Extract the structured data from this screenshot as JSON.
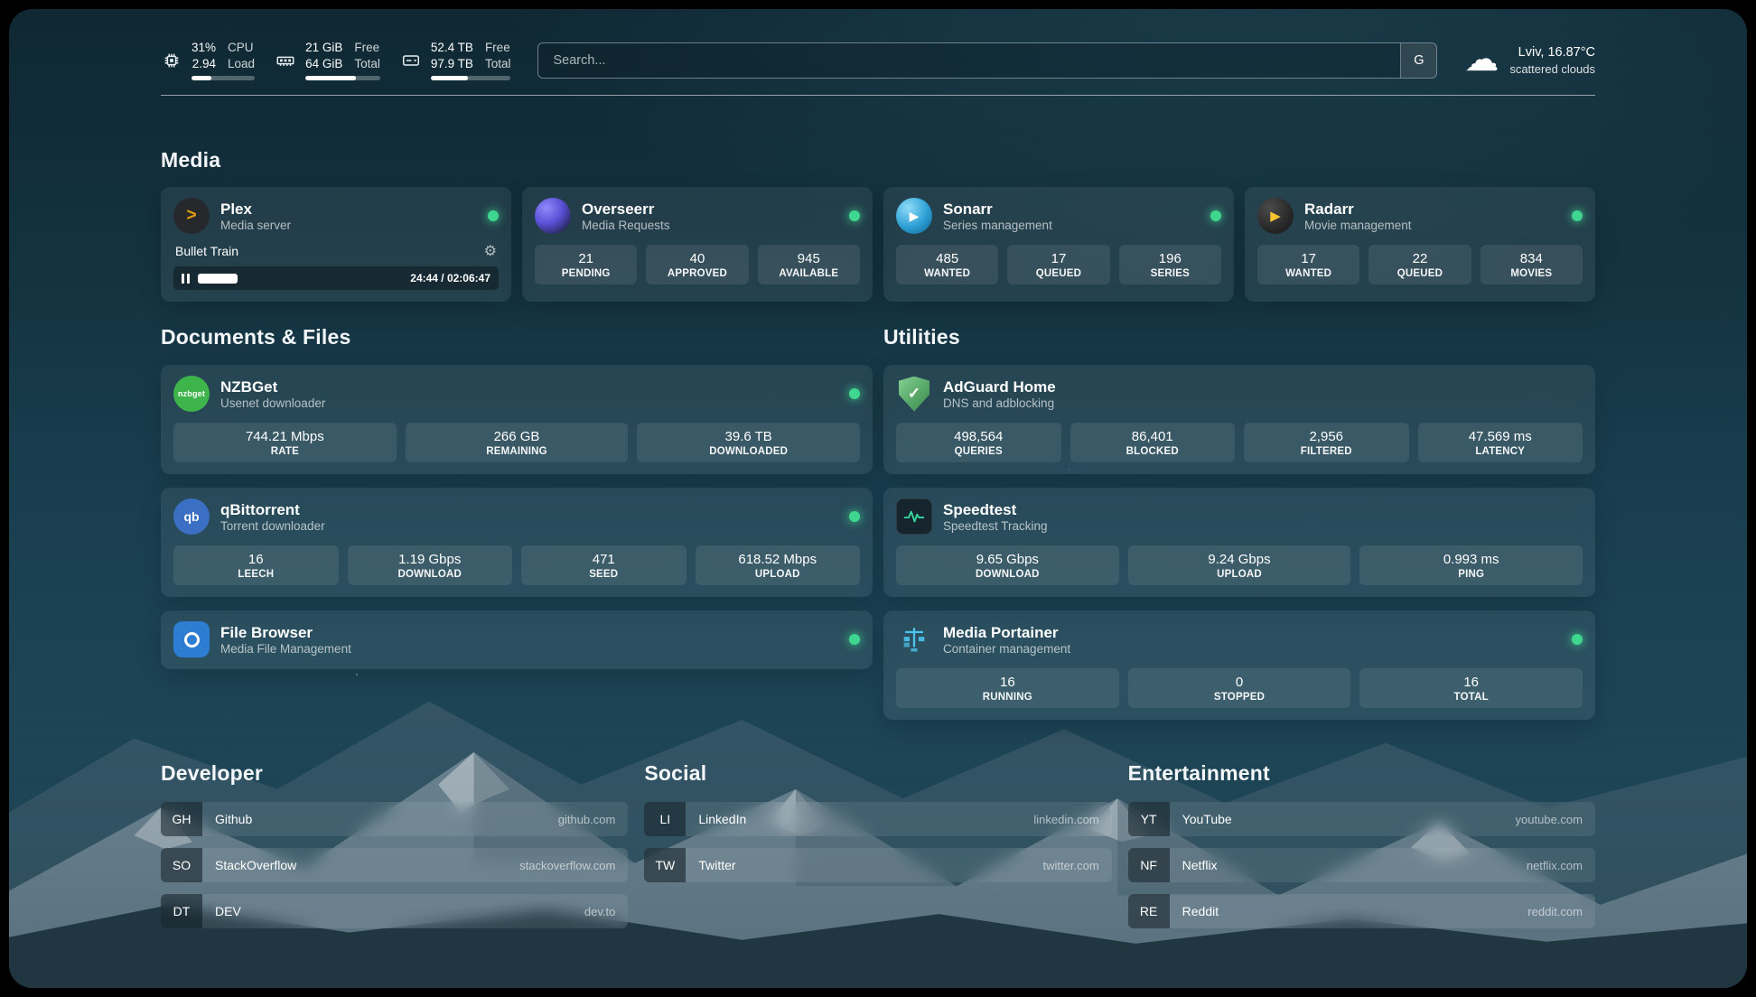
{
  "topbar": {
    "cpu": {
      "value_top": "31%",
      "value_bottom": "2.94",
      "label_top": "CPU",
      "label_bottom": "Load",
      "progress": 31
    },
    "memory": {
      "value_top": "21 GiB",
      "value_bottom": "64 GiB",
      "label_top": "Free",
      "label_bottom": "Total",
      "progress": 67
    },
    "disk": {
      "value_top": "52.4 TB",
      "value_bottom": "97.9 TB",
      "label_top": "Free",
      "label_bottom": "Total",
      "progress": 46
    },
    "search": {
      "placeholder": "Search...",
      "provider_button": "G"
    },
    "weather": {
      "location": "Lviv, 16.87°C",
      "condition": "scattered clouds"
    }
  },
  "sections": {
    "media": "Media",
    "documents": "Documents & Files",
    "utilities": "Utilities",
    "developer": "Developer",
    "social": "Social",
    "entertainment": "Entertainment"
  },
  "services": {
    "plex": {
      "title": "Plex",
      "subtitle": "Media server",
      "icon_glyph": ">",
      "now_playing": "Bullet Train",
      "time": "24:44 / 02:06:47",
      "progress": 19.5
    },
    "overseerr": {
      "title": "Overseerr",
      "subtitle": "Media Requests",
      "stats": [
        {
          "value": "21",
          "label": "PENDING"
        },
        {
          "value": "40",
          "label": "APPROVED"
        },
        {
          "value": "945",
          "label": "AVAILABLE"
        }
      ]
    },
    "sonarr": {
      "title": "Sonarr",
      "subtitle": "Series management",
      "icon_glyph": "▶",
      "stats": [
        {
          "value": "485",
          "label": "WANTED"
        },
        {
          "value": "17",
          "label": "QUEUED"
        },
        {
          "value": "196",
          "label": "SERIES"
        }
      ]
    },
    "radarr": {
      "title": "Radarr",
      "subtitle": "Movie management",
      "icon_glyph": "▶",
      "stats": [
        {
          "value": "17",
          "label": "WANTED"
        },
        {
          "value": "22",
          "label": "QUEUED"
        },
        {
          "value": "834",
          "label": "MOVIES"
        }
      ]
    },
    "nzbget": {
      "title": "NZBGet",
      "subtitle": "Usenet downloader",
      "icon_glyph": "nzbget",
      "stats": [
        {
          "value": "744.21 Mbps",
          "label": "RATE"
        },
        {
          "value": "266 GB",
          "label": "REMAINING"
        },
        {
          "value": "39.6 TB",
          "label": "DOWNLOADED"
        }
      ]
    },
    "qbittorrent": {
      "title": "qBittorrent",
      "subtitle": "Torrent downloader",
      "icon_glyph": "qb",
      "stats": [
        {
          "value": "16",
          "label": "LEECH"
        },
        {
          "value": "1.19 Gbps",
          "label": "DOWNLOAD"
        },
        {
          "value": "471",
          "label": "SEED"
        },
        {
          "value": "618.52 Mbps",
          "label": "UPLOAD"
        }
      ]
    },
    "filebrowser": {
      "title": "File Browser",
      "subtitle": "Media File Management"
    },
    "adguard": {
      "title": "AdGuard Home",
      "subtitle": "DNS and adblocking",
      "icon_glyph": "✓",
      "stats": [
        {
          "value": "498,564",
          "label": "QUERIES"
        },
        {
          "value": "86,401",
          "label": "BLOCKED"
        },
        {
          "value": "2,956",
          "label": "FILTERED"
        },
        {
          "value": "47.569 ms",
          "label": "LATENCY"
        }
      ]
    },
    "speedtest": {
      "title": "Speedtest",
      "subtitle": "Speedtest Tracking",
      "stats": [
        {
          "value": "9.65 Gbps",
          "label": "DOWNLOAD"
        },
        {
          "value": "9.24 Gbps",
          "label": "UPLOAD"
        },
        {
          "value": "0.993 ms",
          "label": "PING"
        }
      ]
    },
    "portainer": {
      "title": "Media Portainer",
      "subtitle": "Container management",
      "stats": [
        {
          "value": "16",
          "label": "RUNNING"
        },
        {
          "value": "0",
          "label": "STOPPED"
        },
        {
          "value": "16",
          "label": "TOTAL"
        }
      ]
    }
  },
  "bookmarks": {
    "developer": [
      {
        "abbr": "GH",
        "name": "Github",
        "url": "github.com"
      },
      {
        "abbr": "SO",
        "name": "StackOverflow",
        "url": "stackoverflow.com"
      },
      {
        "abbr": "DT",
        "name": "DEV",
        "url": "dev.to"
      }
    ],
    "social": [
      {
        "abbr": "LI",
        "name": "LinkedIn",
        "url": "linkedin.com"
      },
      {
        "abbr": "TW",
        "name": "Twitter",
        "url": "twitter.com"
      }
    ],
    "entertainment": [
      {
        "abbr": "YT",
        "name": "YouTube",
        "url": "youtube.com"
      },
      {
        "abbr": "NF",
        "name": "Netflix",
        "url": "netflix.com"
      },
      {
        "abbr": "RE",
        "name": "Reddit",
        "url": "reddit.com"
      }
    ]
  },
  "colors": {
    "status_online": "#3fd68f",
    "plex_accent": "#e5a00d",
    "adguard_green": "#57a868",
    "portainer_blue": "#4dc5ee"
  }
}
